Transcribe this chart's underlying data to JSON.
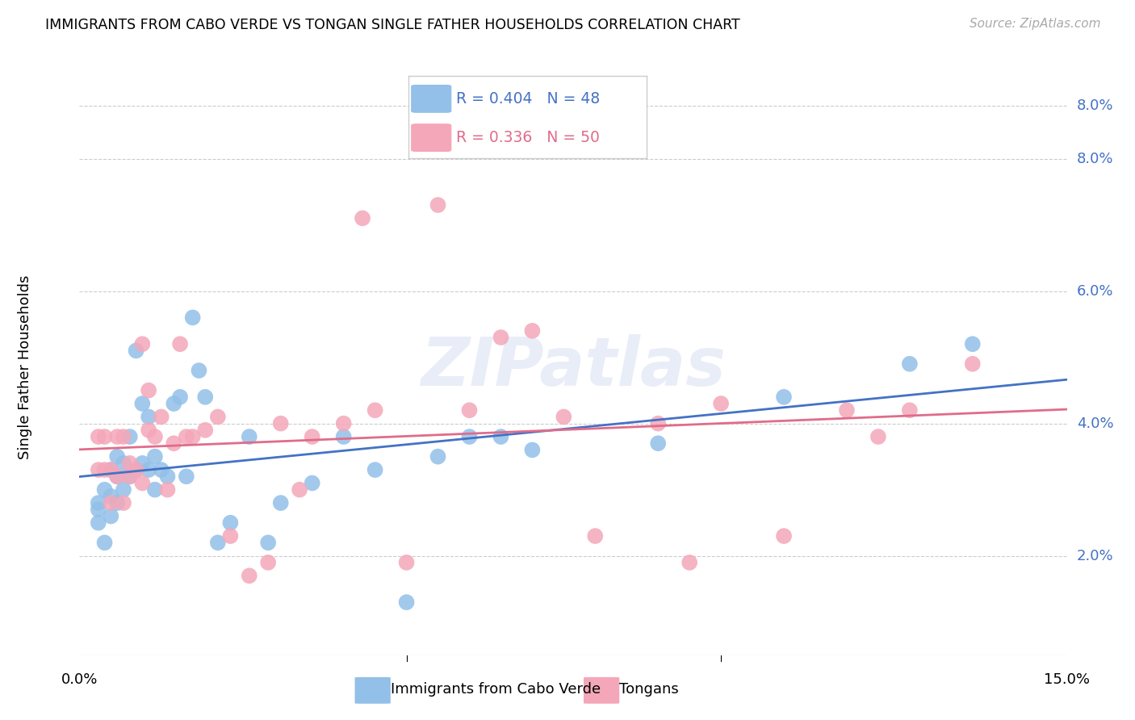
{
  "title": "IMMIGRANTS FROM CABO VERDE VS TONGAN SINGLE FATHER HOUSEHOLDS CORRELATION CHART",
  "source_text": "Source: ZipAtlas.com",
  "ylabel": "Single Father Households",
  "y_ticks": [
    0.02,
    0.04,
    0.06,
    0.08
  ],
  "y_tick_labels": [
    "2.0%",
    "4.0%",
    "6.0%",
    "8.0%"
  ],
  "x_ticks": [
    0.0,
    0.05,
    0.1,
    0.15
  ],
  "x_tick_labels": [
    "0.0%",
    "",
    "",
    "15.0%"
  ],
  "x_lim": [
    -0.002,
    0.155
  ],
  "y_lim": [
    0.005,
    0.092
  ],
  "legend_blue_r": "R = 0.404",
  "legend_blue_n": "N = 48",
  "legend_pink_r": "R = 0.336",
  "legend_pink_n": "N = 50",
  "legend_label_blue": "Immigrants from Cabo Verde",
  "legend_label_pink": "Tongans",
  "blue_color": "#92c0e8",
  "pink_color": "#f4a7b9",
  "trend_blue_color": "#4472c4",
  "trend_pink_color": "#e06c8a",
  "blue_points_x": [
    0.001,
    0.001,
    0.001,
    0.002,
    0.002,
    0.003,
    0.003,
    0.003,
    0.004,
    0.004,
    0.004,
    0.005,
    0.005,
    0.006,
    0.006,
    0.007,
    0.007,
    0.008,
    0.008,
    0.009,
    0.009,
    0.01,
    0.01,
    0.011,
    0.012,
    0.013,
    0.014,
    0.015,
    0.016,
    0.017,
    0.018,
    0.02,
    0.022,
    0.025,
    0.028,
    0.03,
    0.035,
    0.04,
    0.045,
    0.05,
    0.055,
    0.06,
    0.065,
    0.07,
    0.09,
    0.11,
    0.13,
    0.14
  ],
  "blue_points_y": [
    0.028,
    0.027,
    0.025,
    0.03,
    0.022,
    0.033,
    0.029,
    0.026,
    0.035,
    0.032,
    0.028,
    0.034,
    0.03,
    0.038,
    0.032,
    0.051,
    0.033,
    0.043,
    0.034,
    0.041,
    0.033,
    0.035,
    0.03,
    0.033,
    0.032,
    0.043,
    0.044,
    0.032,
    0.056,
    0.048,
    0.044,
    0.022,
    0.025,
    0.038,
    0.022,
    0.028,
    0.031,
    0.038,
    0.033,
    0.013,
    0.035,
    0.038,
    0.038,
    0.036,
    0.037,
    0.044,
    0.049,
    0.052
  ],
  "pink_points_x": [
    0.001,
    0.001,
    0.002,
    0.002,
    0.003,
    0.003,
    0.004,
    0.004,
    0.005,
    0.005,
    0.006,
    0.006,
    0.007,
    0.008,
    0.008,
    0.009,
    0.009,
    0.01,
    0.011,
    0.012,
    0.013,
    0.014,
    0.015,
    0.016,
    0.018,
    0.02,
    0.022,
    0.025,
    0.028,
    0.03,
    0.033,
    0.035,
    0.04,
    0.043,
    0.045,
    0.05,
    0.055,
    0.06,
    0.065,
    0.07,
    0.075,
    0.08,
    0.09,
    0.095,
    0.1,
    0.11,
    0.12,
    0.125,
    0.13,
    0.14
  ],
  "pink_points_y": [
    0.038,
    0.033,
    0.038,
    0.033,
    0.033,
    0.028,
    0.038,
    0.032,
    0.038,
    0.028,
    0.034,
    0.032,
    0.033,
    0.031,
    0.052,
    0.039,
    0.045,
    0.038,
    0.041,
    0.03,
    0.037,
    0.052,
    0.038,
    0.038,
    0.039,
    0.041,
    0.023,
    0.017,
    0.019,
    0.04,
    0.03,
    0.038,
    0.04,
    0.071,
    0.042,
    0.019,
    0.073,
    0.042,
    0.053,
    0.054,
    0.041,
    0.023,
    0.04,
    0.019,
    0.043,
    0.023,
    0.042,
    0.038,
    0.042,
    0.049
  ],
  "watermark": "ZIPatlas",
  "background_color": "#ffffff",
  "grid_color": "#cccccc"
}
